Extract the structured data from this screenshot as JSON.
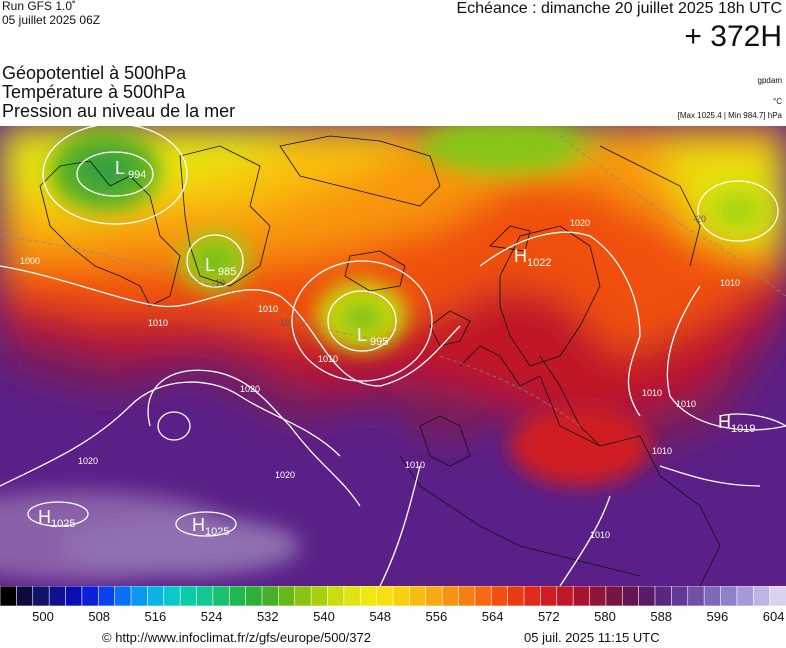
{
  "header": {
    "run": "Run GFS 1.0˚",
    "run_date": "05 juillet 2025 06Z",
    "valid_time": "Echéance : dimanche 20 juillet 2025 18h UTC",
    "lead_time": "+ 372H"
  },
  "parameters": [
    "Géopotentiel à 500hPa",
    "Température à 500hPa",
    "Pression au niveau de la mer"
  ],
  "model_tag": "gpdam",
  "unit_tag": "°C",
  "minmax": "[Max 1025.4 | Min 984.7] hPa",
  "pressure_centers": [
    {
      "type": "L",
      "value": "994"
    },
    {
      "type": "L",
      "value": "985"
    },
    {
      "type": "L",
      "value": "995"
    },
    {
      "type": "H",
      "value": "1022"
    },
    {
      "type": "H",
      "value": "1019"
    },
    {
      "type": "H",
      "value": "1025"
    },
    {
      "type": "H",
      "value": "1025"
    }
  ],
  "isobar_labels": [
    "1000",
    "1010",
    "1010",
    "1020",
    "1020",
    "1010",
    "1020",
    "1010",
    "1010",
    "1010",
    "1020",
    "1010",
    "1010",
    "1010"
  ],
  "temperature_labels": [
    "-10",
    "-10",
    "-20"
  ],
  "colorbar": {
    "ticks": [
      "500",
      "508",
      "516",
      "524",
      "532",
      "540",
      "548",
      "556",
      "564",
      "572",
      "580",
      "588",
      "596",
      "604"
    ],
    "colors": [
      "#000000",
      "#0b0b3d",
      "#121268",
      "#101090",
      "#0a10b0",
      "#0a20d8",
      "#0a40f0",
      "#0a70f8",
      "#0a98f0",
      "#0ab4e0",
      "#0ac8c8",
      "#0acca8",
      "#10c890",
      "#18c070",
      "#20b850",
      "#30b038",
      "#48b028",
      "#68b818",
      "#88c410",
      "#a8d010",
      "#c8dc10",
      "#e0e410",
      "#f0e810",
      "#f8e010",
      "#f8d010",
      "#f8bc10",
      "#f8a810",
      "#f89410",
      "#f87e10",
      "#f86810",
      "#f05010",
      "#e83c10",
      "#e02c18",
      "#d01e20",
      "#c01828",
      "#a81430",
      "#901438",
      "#781440",
      "#641650",
      "#5a1c68",
      "#5a2880",
      "#643898",
      "#7050a8",
      "#8068b8",
      "#9080c8",
      "#a898d8",
      "#c0b4e4",
      "#dcd2ee"
    ]
  },
  "footer": {
    "url": "© http://www.infoclimat.fr/z/gfs/europe/500/372",
    "date": "05 juil. 2025 11:15 UTC"
  }
}
